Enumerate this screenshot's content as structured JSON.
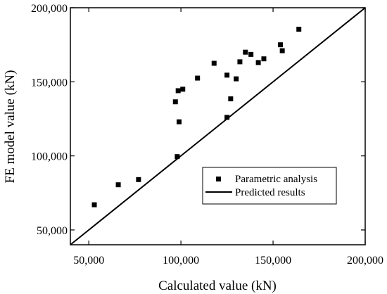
{
  "chart_data": {
    "type": "scatter",
    "xlabel": "Calculated value (kN)",
    "ylabel": "FE model value (kN)",
    "xlim": [
      40000,
      200000
    ],
    "ylim": [
      40000,
      200000
    ],
    "x_ticks": [
      {
        "value": 50000,
        "label": "50,000"
      },
      {
        "value": 100000,
        "label": "100,000"
      },
      {
        "value": 150000,
        "label": "150,000"
      },
      {
        "value": 200000,
        "label": "200,000"
      }
    ],
    "y_ticks": [
      {
        "value": 50000,
        "label": "50,000"
      },
      {
        "value": 100000,
        "label": "100,000"
      },
      {
        "value": 150000,
        "label": "150,000"
      },
      {
        "value": 200000,
        "label": "200,000"
      }
    ],
    "grid": false,
    "legend_position": "bottom-right",
    "series": [
      {
        "name": "Parametric analysis",
        "marker": "square",
        "color": "#000000",
        "points": [
          {
            "x": 53000,
            "y": 67000
          },
          {
            "x": 66000,
            "y": 80500
          },
          {
            "x": 77000,
            "y": 84000
          },
          {
            "x": 97000,
            "y": 136500
          },
          {
            "x": 98000,
            "y": 99500
          },
          {
            "x": 98500,
            "y": 144000
          },
          {
            "x": 99000,
            "y": 123000
          },
          {
            "x": 101000,
            "y": 145000
          },
          {
            "x": 109000,
            "y": 152500
          },
          {
            "x": 118000,
            "y": 162500
          },
          {
            "x": 125000,
            "y": 126000
          },
          {
            "x": 125000,
            "y": 154500
          },
          {
            "x": 127000,
            "y": 138500
          },
          {
            "x": 130000,
            "y": 152000
          },
          {
            "x": 132000,
            "y": 163500
          },
          {
            "x": 135000,
            "y": 170000
          },
          {
            "x": 138000,
            "y": 168500
          },
          {
            "x": 142000,
            "y": 163000
          },
          {
            "x": 145000,
            "y": 165500
          },
          {
            "x": 154000,
            "y": 175000
          },
          {
            "x": 155000,
            "y": 171000
          },
          {
            "x": 164000,
            "y": 185500
          }
        ]
      },
      {
        "name": "Predicted results",
        "line": true,
        "color": "#000000",
        "points": [
          {
            "x": 40000,
            "y": 40000
          },
          {
            "x": 200000,
            "y": 200000
          }
        ]
      }
    ]
  }
}
